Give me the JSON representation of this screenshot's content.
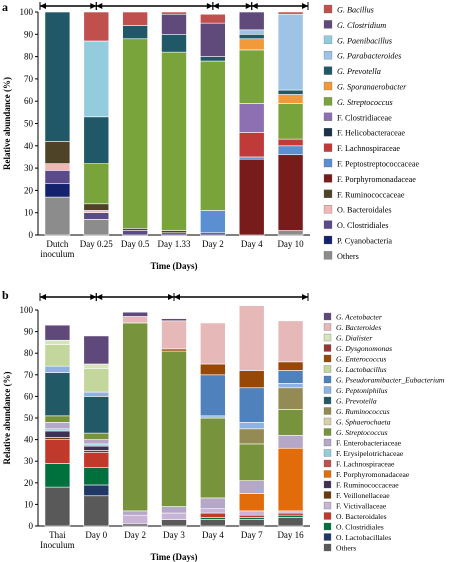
{
  "chart_data": [
    {
      "panel": "a",
      "type": "bar",
      "stacked": true,
      "ylabel": "Relative abundance (%)",
      "xlabel": "Time (Days)",
      "ylim": [
        0,
        100
      ],
      "yticks": [
        0,
        10,
        20,
        30,
        40,
        50,
        60,
        70,
        80,
        90,
        100
      ],
      "categories": [
        "Dutch inoculum",
        "Day 0.25",
        "Day 0.5",
        "Day 1.33",
        "Day 2",
        "Day 4",
        "Day 10"
      ],
      "tick_labels": [
        [
          "Dutch",
          "inoculum"
        ],
        [
          "Day 0.25"
        ],
        [
          "Day 0.5"
        ],
        [
          "Day 1.33"
        ],
        [
          "Day 2"
        ],
        [
          "Day 4"
        ],
        [
          "Day 10"
        ]
      ],
      "arrow_groups": [
        [
          0,
          1
        ],
        [
          1,
          4
        ],
        [
          4,
          5
        ],
        [
          5,
          6
        ]
      ],
      "series": [
        {
          "name": "Others",
          "italic_prefix": "",
          "color": "#8c8c8c",
          "values": [
            17,
            7,
            0,
            0,
            0,
            0,
            2
          ]
        },
        {
          "name": "P. Cyanobacteria",
          "italic_prefix": "",
          "color": "#14226e",
          "values": [
            6,
            0,
            0,
            0,
            0,
            0,
            0
          ]
        },
        {
          "name": "O. Clostridiales",
          "italic_prefix": "",
          "color": "#5a4a8a",
          "values": [
            6,
            3,
            2,
            1,
            1,
            0,
            0
          ]
        },
        {
          "name": "O. Bacteroidales",
          "italic_prefix": "",
          "color": "#f0b8b5",
          "values": [
            3,
            1,
            0,
            0,
            0,
            0,
            0
          ]
        },
        {
          "name": "F. Ruminococcaceae",
          "italic_prefix": "",
          "color": "#4e4327",
          "values": [
            10,
            3,
            1,
            1,
            0,
            0,
            0
          ]
        },
        {
          "name": "F. Porphyromonadaceae",
          "italic_prefix": "",
          "color": "#771b1b",
          "values": [
            0,
            0,
            0,
            0,
            0,
            34,
            34
          ]
        },
        {
          "name": "F. Peptostreptococcaceae",
          "italic_prefix": "",
          "color": "#5a8fd1",
          "values": [
            0,
            0,
            0,
            0,
            10,
            1,
            4
          ]
        },
        {
          "name": "F. Lachnospiraceae",
          "italic_prefix": "",
          "color": "#bf3a38",
          "values": [
            0,
            0,
            0,
            0,
            0,
            11,
            3
          ]
        },
        {
          "name": "F. Helicobacteraceae",
          "italic_prefix": "",
          "color": "#1a3147",
          "values": [
            0,
            0,
            0,
            0,
            0,
            0,
            0
          ]
        },
        {
          "name": "F. Clostridiaceae",
          "italic_prefix": "",
          "color": "#8c70b2",
          "values": [
            0,
            0,
            0,
            0,
            0,
            13,
            0
          ]
        },
        {
          "name": "Streptococcus",
          "italic_prefix": "G. ",
          "color": "#79a43b",
          "values": [
            0,
            18,
            85,
            80,
            67,
            24,
            16
          ]
        },
        {
          "name": "Sporanaerobacter",
          "italic_prefix": "G. ",
          "color": "#f29a3a",
          "values": [
            0,
            0,
            0,
            0,
            0,
            5,
            4
          ]
        },
        {
          "name": "Prevotella",
          "italic_prefix": "G. ",
          "color": "#215868",
          "values": [
            58,
            21,
            6,
            8,
            2,
            2,
            2
          ]
        },
        {
          "name": "Parabacteroides",
          "italic_prefix": "G. ",
          "color": "#9dc3e6",
          "values": [
            0,
            0,
            0,
            0,
            0,
            2,
            34
          ]
        },
        {
          "name": "Paenibacillus",
          "italic_prefix": "G. ",
          "color": "#93cddd",
          "values": [
            0,
            34,
            0,
            0,
            0,
            0,
            0
          ]
        },
        {
          "name": "Clostridium",
          "italic_prefix": "G. ",
          "color": "#604a7b",
          "values": [
            0,
            0,
            0,
            9,
            15,
            8,
            0
          ]
        },
        {
          "name": "Bacillus",
          "italic_prefix": "G. ",
          "color": "#c0504d",
          "values": [
            0,
            13,
            6,
            1,
            4,
            0,
            1
          ]
        }
      ]
    },
    {
      "panel": "b",
      "type": "bar",
      "stacked": true,
      "ylabel": "Relative abundance (%)",
      "xlabel": "Time (Days)",
      "ylim": [
        0,
        100
      ],
      "yticks": [
        0,
        10,
        20,
        30,
        40,
        50,
        60,
        70,
        80,
        90,
        100
      ],
      "categories": [
        "Thai Inoculum",
        "Day 0",
        "Day 2",
        "Day 3",
        "Day 4",
        "Day 7",
        "Day 16"
      ],
      "tick_labels": [
        [
          "Thai",
          "Inoculum"
        ],
        [
          "Day 0"
        ],
        [
          "Day 2"
        ],
        [
          "Day 3"
        ],
        [
          "Day 4"
        ],
        [
          "Day 7"
        ],
        [
          "Day 16"
        ]
      ],
      "arrow_groups": [
        [
          0,
          1
        ],
        [
          1,
          3
        ],
        [
          3,
          6
        ]
      ],
      "series": [
        {
          "name": "Others",
          "italic_prefix": "",
          "color": "#595959",
          "values": [
            18,
            14,
            1,
            3,
            3,
            3,
            4
          ]
        },
        {
          "name": "O. Lactobacillales",
          "italic_prefix": "",
          "color": "#1f3864",
          "values": [
            0,
            5,
            0,
            0,
            0,
            0,
            0
          ]
        },
        {
          "name": "O. Clostridiales",
          "italic_prefix": "",
          "color": "#00703c",
          "values": [
            11,
            8,
            0,
            0,
            1,
            1,
            1
          ]
        },
        {
          "name": "O. Bacteroidales",
          "italic_prefix": "",
          "color": "#c0392b",
          "values": [
            11,
            7,
            0,
            0,
            2,
            1,
            1
          ]
        },
        {
          "name": "F. Victivallaceae",
          "italic_prefix": "",
          "color": "#c9b3d6",
          "values": [
            0,
            0,
            4,
            3,
            2,
            2,
            1
          ]
        },
        {
          "name": "F. Veillonellaceae",
          "italic_prefix": "",
          "color": "#6b3a10",
          "values": [
            1,
            1,
            0,
            0,
            0,
            0,
            0
          ]
        },
        {
          "name": "F. Ruminococcaceae",
          "italic_prefix": "",
          "color": "#403152",
          "values": [
            3,
            2,
            0,
            0,
            0,
            0,
            0
          ]
        },
        {
          "name": "F. Porphyromonadaceae",
          "italic_prefix": "",
          "color": "#e26b0a",
          "values": [
            0,
            0,
            0,
            0,
            0,
            8,
            29
          ]
        },
        {
          "name": "F. Lachnospiraceae",
          "italic_prefix": "",
          "color": "#c0504d",
          "values": [
            0,
            0,
            0,
            0,
            0,
            0,
            0
          ]
        },
        {
          "name": "F. Erysipelotrichaceae",
          "italic_prefix": "",
          "color": "#92cddc",
          "values": [
            1,
            1,
            0,
            0,
            0,
            0,
            0
          ]
        },
        {
          "name": "F. Enterobacteriaceae",
          "italic_prefix": "",
          "color": "#b4a7c7",
          "values": [
            3,
            2,
            2,
            3,
            5,
            6,
            6
          ]
        },
        {
          "name": "Streptococcus",
          "italic_prefix": "G. ",
          "color": "#77933c",
          "values": [
            3,
            3,
            87,
            72,
            37,
            17,
            12
          ]
        },
        {
          "name": "Sphaerochaeta",
          "italic_prefix": "G. ",
          "color": "#d8d0a8",
          "values": [
            0,
            0,
            0,
            0,
            0,
            0,
            0
          ]
        },
        {
          "name": "Ruminococcus",
          "italic_prefix": "G. ",
          "color": "#948a54",
          "values": [
            0,
            0,
            0,
            0,
            0,
            7,
            10
          ]
        },
        {
          "name": "Prevotella",
          "italic_prefix": "G. ",
          "color": "#215967",
          "values": [
            20,
            17,
            0,
            0,
            0,
            0,
            0
          ]
        },
        {
          "name": "Peptoniphilus",
          "italic_prefix": "G. ",
          "color": "#8db3e2",
          "values": [
            3,
            2,
            0,
            0,
            1,
            3,
            2
          ]
        },
        {
          "name": "Pseudoramibacter_Eubacterium",
          "italic_prefix": "G. ",
          "color": "#4f81bd",
          "values": [
            0,
            0,
            0,
            0,
            19,
            16,
            6
          ]
        },
        {
          "name": "Lactobacillus",
          "italic_prefix": "G. ",
          "color": "#c3d69b",
          "values": [
            10,
            11,
            0,
            0,
            0,
            0,
            0
          ]
        },
        {
          "name": "Enterococcus",
          "italic_prefix": "G. ",
          "color": "#974706",
          "values": [
            0,
            0,
            0,
            1,
            5,
            8,
            4
          ]
        },
        {
          "name": "Dysgonomonas",
          "italic_prefix": "G. ",
          "color": "#953735",
          "values": [
            0,
            0,
            0,
            0,
            0,
            0,
            0
          ]
        },
        {
          "name": "Dialister",
          "italic_prefix": "G. ",
          "color": "#d7e4bc",
          "values": [
            2,
            2,
            0,
            0,
            0,
            0,
            0
          ]
        },
        {
          "name": "Bacteroides",
          "italic_prefix": "G. ",
          "color": "#e6b9b8",
          "values": [
            0,
            0,
            3,
            13,
            19,
            30,
            19
          ]
        },
        {
          "name": "Acetobacter",
          "italic_prefix": "G. ",
          "color": "#5f497a",
          "values": [
            7,
            13,
            2,
            1,
            0,
            0,
            0
          ]
        }
      ]
    }
  ]
}
